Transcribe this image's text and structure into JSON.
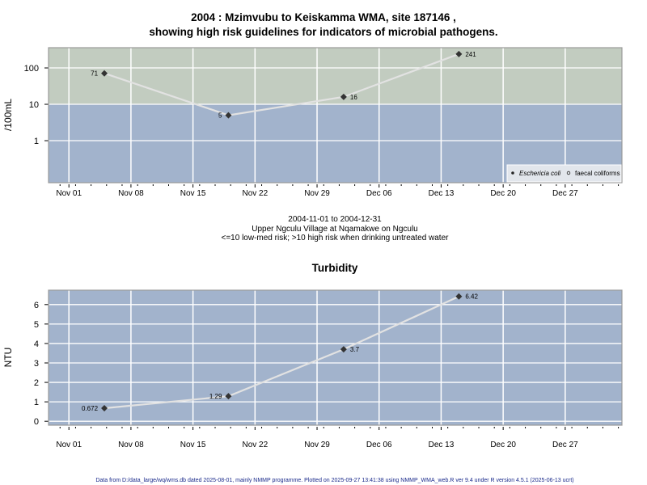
{
  "colors": {
    "high_risk_band": "#c2ccc0",
    "low_risk_band": "#a2b3cc",
    "line": "#e2e2e2",
    "point": "#333333",
    "grid": "#ffffff"
  },
  "chart_data": [
    {
      "type": "line",
      "title": "2004 : Mzimvubu to Keiskamma WMA, site 187146 ,",
      "subtitle": "showing high risk guidelines for indicators of microbial pathogens.",
      "xlabel_lines": [
        "2004-11-01 to 2004-12-31",
        "Upper Ngculu Village at Nqamakwe on Ngculu",
        "<=10 low-med risk; >10 high risk when drinking untreated water"
      ],
      "ylabel": "/100mL",
      "yscale": "log",
      "ylim": [
        0.07,
        360
      ],
      "yticks": [
        1,
        10,
        100
      ],
      "ytick_labels": [
        "1",
        "10",
        "100"
      ],
      "xlim_days_from_nov01": [
        -2.3,
        62.4
      ],
      "xticks_days": [
        0,
        7,
        14,
        21,
        28,
        35,
        42,
        49,
        56
      ],
      "xtick_labels": [
        "Nov 01",
        "Nov 08",
        "Nov 15",
        "Nov 22",
        "Nov 29",
        "Dec 06",
        "Dec 13",
        "Dec 20",
        "Dec 27"
      ],
      "threshold": 10,
      "series": [
        {
          "name": "Eschericia coli",
          "x": [
            "2004-11-05",
            "2004-11-19",
            "2004-12-02",
            "2004-12-15"
          ],
          "x_days": [
            4,
            18,
            31,
            44
          ],
          "values": [
            71,
            5,
            16,
            241
          ],
          "labels": [
            "71",
            "5",
            "16",
            "241"
          ],
          "label_side": [
            "left",
            "left",
            "right",
            "right"
          ]
        }
      ],
      "legend": {
        "position": "bottom-right",
        "entries": [
          "Eschericia coli",
          "faecal coliforms"
        ]
      },
      "grid": true
    },
    {
      "type": "line",
      "title": "Turbidity",
      "ylabel": "NTU",
      "yscale": "linear",
      "ylim": [
        -0.2,
        6.74
      ],
      "yticks": [
        0,
        1,
        2,
        3,
        4,
        5,
        6
      ],
      "ytick_labels": [
        "0",
        "1",
        "2",
        "3",
        "4",
        "5",
        "6"
      ],
      "xlim_days_from_nov01": [
        -2.3,
        62.4
      ],
      "xticks_days": [
        0,
        7,
        14,
        21,
        28,
        35,
        42,
        49,
        56
      ],
      "xtick_labels": [
        "Nov 01",
        "Nov 08",
        "Nov 15",
        "Nov 22",
        "Nov 29",
        "Dec 06",
        "Dec 13",
        "Dec 20",
        "Dec 27"
      ],
      "series": [
        {
          "name": "Turbidity",
          "x": [
            "2004-11-05",
            "2004-11-19",
            "2004-12-02",
            "2004-12-15"
          ],
          "x_days": [
            4,
            18,
            31,
            44
          ],
          "values": [
            0.672,
            1.29,
            3.7,
            6.42
          ],
          "labels": [
            "0.672",
            "1.29",
            "3.7",
            "6.42"
          ],
          "label_side": [
            "left",
            "left",
            "right",
            "right"
          ]
        }
      ],
      "grid": true
    }
  ],
  "footer": "Data from D:/data_large/wq/wms.db dated 2025-08-01, mainly NMMP programme. Plotted on 2025-09-27 13:41:38 using NMMP_WMA_web.R ver 9.4 under R version 4.5.1 (2025-06-13 ucrt)"
}
